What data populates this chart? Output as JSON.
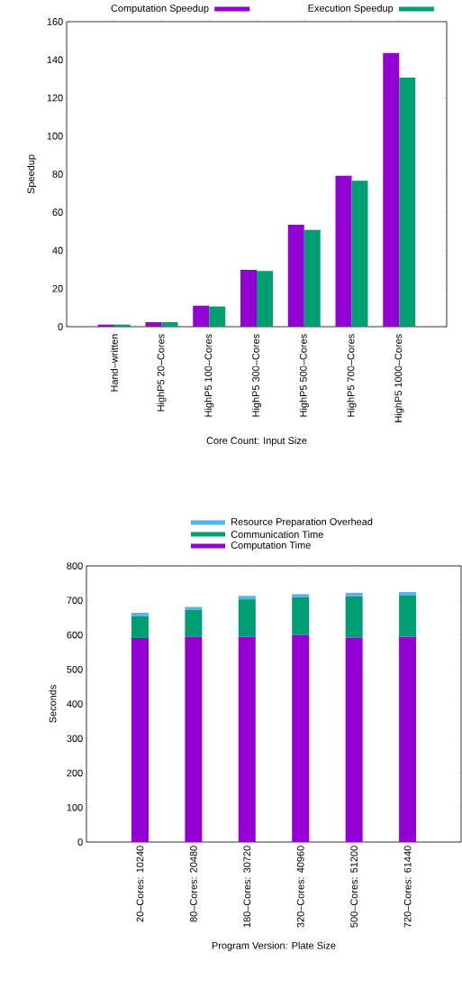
{
  "chart_data": [
    {
      "type": "bar",
      "xlabel": "Core Count: Input Size",
      "ylabel": "Speedup",
      "categories": [
        "Hand–written",
        "HighP5 20–Cores",
        "HighP5 100–Cores",
        "HighP5 300–Cores",
        "HighP5 500–Cores",
        "HighP5 700–Cores",
        "HighP5 1000–Cores"
      ],
      "series": [
        {
          "name": "Computation Speedup",
          "color": "#9400d3",
          "values": [
            1.1,
            2.4,
            11,
            29.8,
            53.5,
            79.2,
            143.5
          ]
        },
        {
          "name": "Execution Speedup",
          "color": "#009e73",
          "values": [
            1.1,
            2.4,
            10.6,
            29.2,
            50.8,
            76.6,
            130.7
          ]
        }
      ],
      "ylim": [
        0,
        160
      ],
      "yticks": [
        0,
        20,
        40,
        60,
        80,
        100,
        120,
        140,
        160
      ],
      "legend": "top"
    },
    {
      "type": "bar",
      "stacked": true,
      "xlabel": "Program Version: Plate Size",
      "ylabel": "Seconds",
      "categories": [
        "20–Cores: 10240",
        "80–Cores: 20480",
        "180–Cores: 30720",
        "320–Cores: 40960",
        "500–Cores: 51200",
        "720–Cores: 61440"
      ],
      "series": [
        {
          "name": "Computation Time",
          "color": "#9400d3",
          "values": [
            591,
            594,
            595,
            599,
            592,
            595
          ]
        },
        {
          "name": "Communication Time",
          "color": "#009e73",
          "values": [
            63,
            79,
            108,
            110,
            120,
            120
          ]
        },
        {
          "name": "Resource Preparation Overhead",
          "color": "#56b4e9",
          "values": [
            10,
            8,
            10,
            9,
            10,
            9
          ]
        }
      ],
      "ylim": [
        0,
        800
      ],
      "yticks": [
        0,
        100,
        200,
        300,
        400,
        500,
        600,
        700,
        800
      ],
      "legend": "top"
    }
  ]
}
